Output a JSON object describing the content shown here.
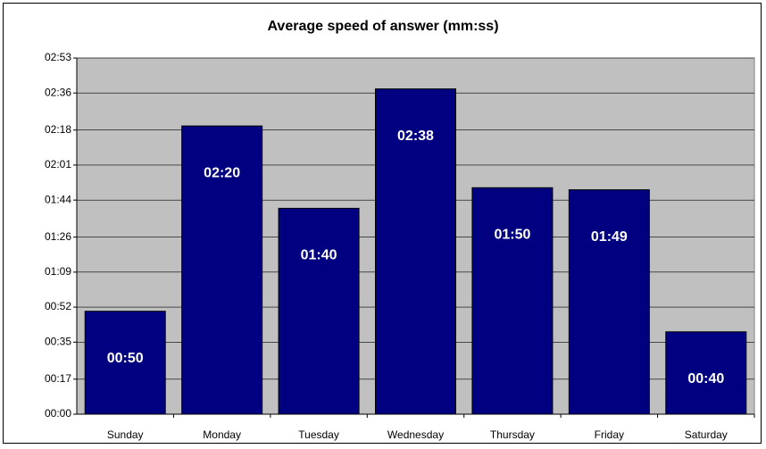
{
  "chart_data": {
    "type": "bar",
    "title": "Average speed of answer (mm:ss)",
    "categories": [
      "Sunday",
      "Monday",
      "Tuesday",
      "Wednesday",
      "Thursday",
      "Friday",
      "Saturday"
    ],
    "values": [
      50,
      140,
      100,
      158,
      110,
      109,
      40
    ],
    "value_labels": [
      "00:50",
      "02:20",
      "01:40",
      "02:38",
      "01:50",
      "01:49",
      "00:40"
    ],
    "color": "#000080",
    "ylim": [
      0,
      173
    ],
    "yticks": [
      {
        "value": 0,
        "label": "00:00"
      },
      {
        "value": 17,
        "label": "00:17"
      },
      {
        "value": 35,
        "label": "00:35"
      },
      {
        "value": 52,
        "label": "00:52"
      },
      {
        "value": 69,
        "label": "01:09"
      },
      {
        "value": 86,
        "label": "01:26"
      },
      {
        "value": 104,
        "label": "01:44"
      },
      {
        "value": 121,
        "label": "02:01"
      },
      {
        "value": 138,
        "label": "02:18"
      },
      {
        "value": 156,
        "label": "02:36"
      },
      {
        "value": 173,
        "label": "02:53"
      }
    ],
    "grid": true
  }
}
